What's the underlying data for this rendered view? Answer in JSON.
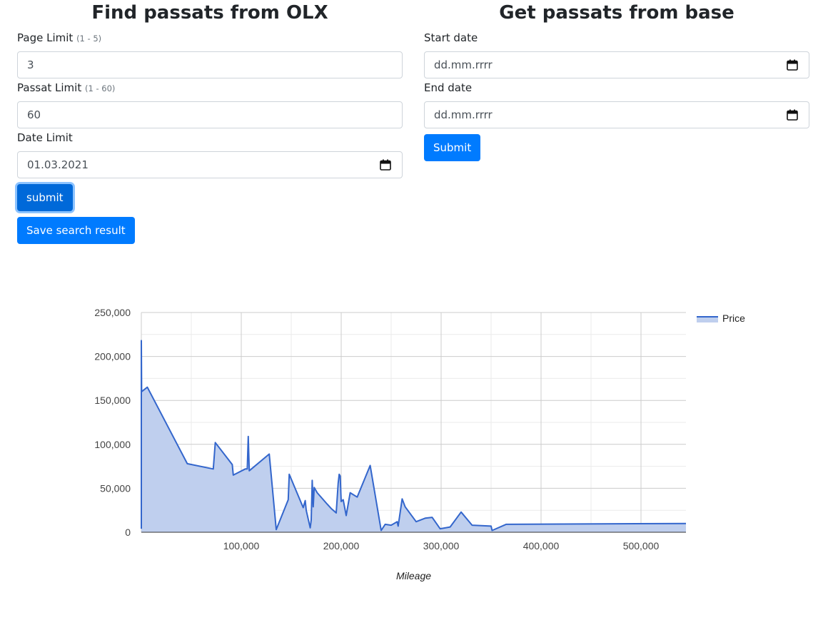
{
  "left_panel": {
    "title": "Find passats from OLX",
    "page_limit": {
      "label": "Page Limit",
      "hint": "(1 - 5)",
      "value": "3"
    },
    "passat_limit": {
      "label": "Passat Limit",
      "hint": "(1 - 60)",
      "value": "60"
    },
    "date_limit": {
      "label": "Date Limit",
      "value": "01.03.2021"
    },
    "submit_label": "submit",
    "save_label": "Save search result"
  },
  "right_panel": {
    "title": "Get passats from base",
    "start_date": {
      "label": "Start date",
      "placeholder": "dd.mm.rrrr"
    },
    "end_date": {
      "label": "End date",
      "placeholder": "dd.mm.rrrr"
    },
    "submit_label": "Submit"
  },
  "icons": {
    "date_picker": "calendar-icon"
  },
  "colors": {
    "primary": "#007bff",
    "series": "#3366cc",
    "series_fill": "#bfcfee"
  },
  "chart_data": {
    "type": "area",
    "xlabel": "Mileage",
    "ylabel": "",
    "xlim": [
      0,
      545000
    ],
    "ylim": [
      0,
      250000
    ],
    "x_ticks": [
      100000,
      200000,
      300000,
      400000,
      500000
    ],
    "y_ticks": [
      0,
      50000,
      100000,
      150000,
      200000,
      250000
    ],
    "grid": true,
    "legend_position": "right",
    "series": [
      {
        "name": "Price",
        "x": [
          0,
          0,
          300,
          6000,
          46000,
          72000,
          74000,
          91000,
          92000,
          104000,
          106000,
          107000,
          108000,
          128000,
          135000,
          147000,
          148000,
          162000,
          164000,
          165000,
          169000,
          170000,
          171000,
          172000,
          173000,
          176000,
          186000,
          190000,
          195000,
          197000,
          198000,
          199000,
          200000,
          202000,
          205000,
          209000,
          216000,
          229000,
          240000,
          244000,
          250000,
          256000,
          257000,
          261000,
          264000,
          275000,
          284000,
          291000,
          299000,
          309000,
          320000,
          331000,
          350000,
          351000,
          365000,
          545000
        ],
        "y": [
          4000,
          218000,
          160000,
          165000,
          78000,
          72000,
          102000,
          77000,
          65000,
          72000,
          72000,
          109000,
          70000,
          89000,
          3000,
          37000,
          66000,
          28000,
          36000,
          25000,
          5000,
          14000,
          59000,
          29000,
          51000,
          45000,
          32000,
          27000,
          22000,
          56000,
          66000,
          64000,
          35000,
          37000,
          19000,
          45000,
          40000,
          76000,
          2000,
          9000,
          8000,
          12000,
          7000,
          38000,
          29000,
          12000,
          16000,
          17000,
          4000,
          6000,
          23000,
          8000,
          7000,
          2000,
          9000,
          10000
        ]
      }
    ]
  }
}
